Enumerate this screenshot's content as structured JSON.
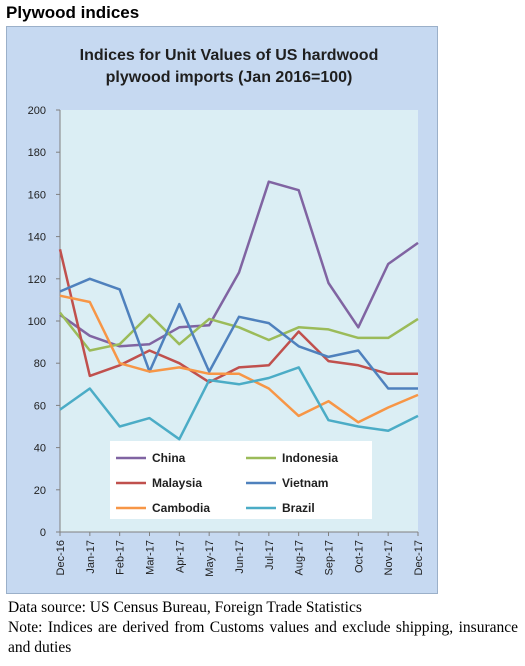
{
  "heading": "Plywood indices",
  "source_note": "Data source: US Census Bureau, Foreign Trade Statistics",
  "footnote": "Note: Indices are derived from Customs values and exclude shipping, insurance and duties",
  "chart_data": {
    "type": "line",
    "title": "Indices for Unit Values of US hardwood plywood imports (Jan 2016=100)",
    "title_lines": [
      "Indices for Unit Values of US hardwood",
      "plywood imports (Jan 2016=100)"
    ],
    "xlabel": "",
    "ylabel": "",
    "categories": [
      "Dec-16",
      "Jan-17",
      "Feb-17",
      "Mar-17",
      "Apr-17",
      "May-17",
      "Jun-17",
      "Jul-17",
      "Aug-17",
      "Sep-17",
      "Oct-17",
      "Nov-17",
      "Dec-17"
    ],
    "ylim": [
      0,
      200
    ],
    "yticks": [
      0,
      20,
      40,
      60,
      80,
      100,
      120,
      140,
      160,
      180,
      200
    ],
    "grid": false,
    "legend_position": "bottom-center",
    "series": [
      {
        "name": "China",
        "color": "#8064a2",
        "values": [
          103,
          93,
          88,
          89,
          97,
          98,
          123,
          166,
          162,
          118,
          97,
          127,
          137
        ]
      },
      {
        "name": "Indonesia",
        "color": "#9bbb59",
        "values": [
          104,
          86,
          89,
          103,
          89,
          101,
          97,
          91,
          97,
          96,
          92,
          92,
          101
        ]
      },
      {
        "name": "Malaysia",
        "color": "#c0504d",
        "values": [
          134,
          74,
          79,
          86,
          80,
          71,
          78,
          79,
          95,
          81,
          79,
          75,
          75
        ]
      },
      {
        "name": "Vietnam",
        "color": "#4f81bd",
        "values": [
          114,
          120,
          115,
          76,
          108,
          76,
          102,
          99,
          88,
          83,
          86,
          68,
          68
        ]
      },
      {
        "name": "Cambodia",
        "color": "#f79646",
        "values": [
          112,
          109,
          80,
          76,
          78,
          75,
          75,
          68,
          55,
          62,
          52,
          59,
          65
        ]
      },
      {
        "name": "Brazil",
        "color": "#4bacc6",
        "values": [
          58,
          68,
          50,
          54,
          44,
          72,
          70,
          73,
          78,
          53,
          50,
          48,
          55
        ]
      }
    ]
  }
}
